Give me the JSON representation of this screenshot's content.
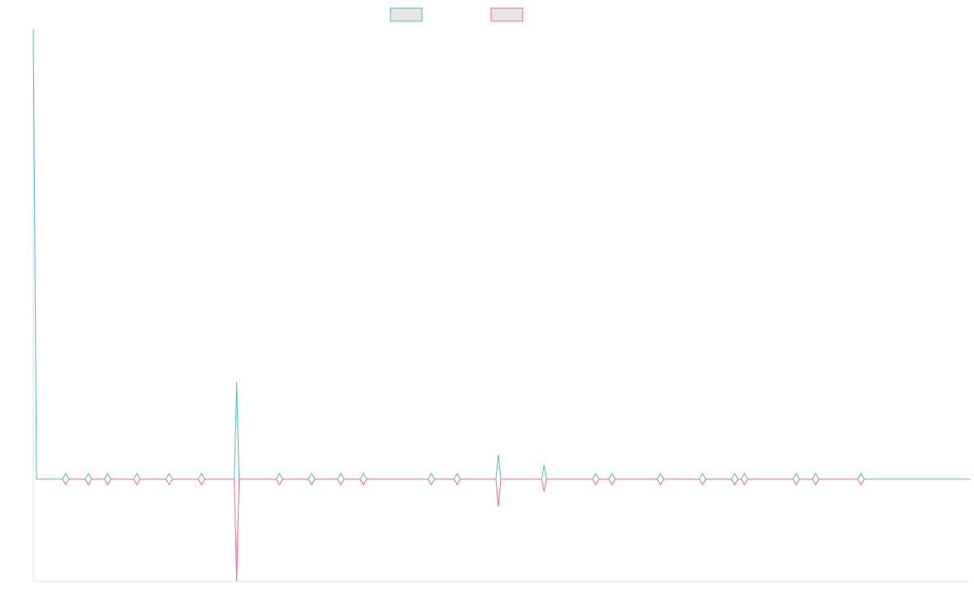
{
  "colors": {
    "series_up": "#4bc0c0",
    "series_down": "#ff6384",
    "legend_fill": "#e6e6e6",
    "axis": "#e0e0e0",
    "marker_fill": "#ffffff"
  },
  "chart_data": {
    "type": "line",
    "title": "",
    "xlabel": "",
    "ylabel": "",
    "legend": "top-center",
    "grid": false,
    "xlim": [
      0,
      100
    ],
    "ylim": [
      -100,
      440
    ],
    "baseline": 0,
    "series": [
      {
        "color": "#4bc0c0",
        "values": [
          {
            "x": 0.0,
            "y": 440
          },
          {
            "x": 0.35,
            "y": 0
          },
          {
            "x": 3.47,
            "y": 0
          },
          {
            "x": 5.88,
            "y": 0
          },
          {
            "x": 7.95,
            "y": 0
          },
          {
            "x": 11.06,
            "y": 0
          },
          {
            "x": 14.51,
            "y": 0
          },
          {
            "x": 17.96,
            "y": 0
          },
          {
            "x": 21.72,
            "y": 95
          },
          {
            "x": 26.28,
            "y": 0
          },
          {
            "x": 29.72,
            "y": 0
          },
          {
            "x": 32.83,
            "y": 0
          },
          {
            "x": 35.24,
            "y": 0
          },
          {
            "x": 42.49,
            "y": 0
          },
          {
            "x": 45.25,
            "y": 0
          },
          {
            "x": 49.65,
            "y": 24
          },
          {
            "x": 54.53,
            "y": 14
          },
          {
            "x": 60.05,
            "y": 0
          },
          {
            "x": 61.78,
            "y": 0
          },
          {
            "x": 66.96,
            "y": 0
          },
          {
            "x": 71.45,
            "y": 0
          },
          {
            "x": 74.89,
            "y": 0
          },
          {
            "x": 75.93,
            "y": 0
          },
          {
            "x": 81.45,
            "y": 0
          },
          {
            "x": 83.53,
            "y": 0
          },
          {
            "x": 88.36,
            "y": 0
          },
          {
            "x": 100.0,
            "y": 0
          }
        ]
      },
      {
        "color": "#ff6384",
        "values": [
          {
            "x": 3.47,
            "y": 0
          },
          {
            "x": 5.88,
            "y": 0
          },
          {
            "x": 7.95,
            "y": 0
          },
          {
            "x": 11.06,
            "y": 0
          },
          {
            "x": 14.51,
            "y": 0
          },
          {
            "x": 17.96,
            "y": 0
          },
          {
            "x": 21.72,
            "y": -100
          },
          {
            "x": 26.28,
            "y": 0
          },
          {
            "x": 29.72,
            "y": 0
          },
          {
            "x": 32.83,
            "y": 0
          },
          {
            "x": 35.24,
            "y": 0
          },
          {
            "x": 42.49,
            "y": 0
          },
          {
            "x": 45.25,
            "y": 0
          },
          {
            "x": 49.65,
            "y": -27
          },
          {
            "x": 54.53,
            "y": -12
          },
          {
            "x": 60.05,
            "y": 0
          },
          {
            "x": 61.78,
            "y": 0
          },
          {
            "x": 66.96,
            "y": 0
          },
          {
            "x": 71.45,
            "y": 0
          },
          {
            "x": 74.89,
            "y": 0
          },
          {
            "x": 75.93,
            "y": 0
          },
          {
            "x": 81.45,
            "y": 0
          },
          {
            "x": 83.53,
            "y": 0
          },
          {
            "x": 88.36,
            "y": 0
          }
        ]
      }
    ]
  }
}
